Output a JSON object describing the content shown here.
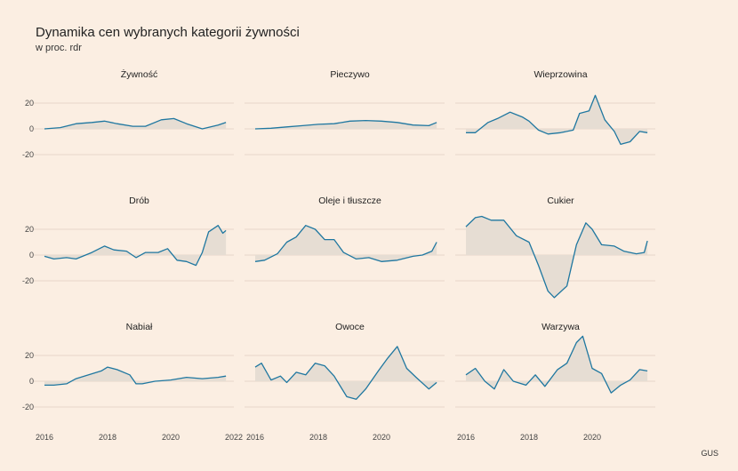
{
  "title": "Dynamika cen wybranych kategorii żywności",
  "subtitle": "w proc. rdr",
  "source": "GUS",
  "colors": {
    "line": "#1f77a0",
    "area": "#e6ddd3",
    "background": "#fbeee2"
  },
  "chart_data": {
    "type": "area",
    "layout": "facet-grid-3x3",
    "xlim": [
      2016,
      2022
    ],
    "ylim": [
      -35,
      35
    ],
    "x_ticks": [
      "2016",
      "2018",
      "2020",
      "2022"
    ],
    "y_ticks": [
      "20",
      "0",
      "-20"
    ],
    "facets": [
      {
        "name": "Żywność",
        "x": [
          2016,
          2016.5,
          2017,
          2017.5,
          2017.9,
          2018.3,
          2018.8,
          2019.2,
          2019.7,
          2020.1,
          2020.5,
          2021,
          2021.5,
          2021.75
        ],
        "y": [
          0,
          1,
          4,
          5,
          6,
          4,
          2,
          2,
          7,
          8,
          4,
          0,
          3,
          5
        ]
      },
      {
        "name": "Pieczywo",
        "x": [
          2016,
          2016.5,
          2017,
          2017.5,
          2018,
          2018.5,
          2019,
          2019.5,
          2020,
          2020.5,
          2021,
          2021.5,
          2021.75
        ],
        "y": [
          0,
          0.5,
          1.5,
          2.5,
          3.5,
          4,
          6,
          6.5,
          6,
          5,
          3,
          2.5,
          5
        ]
      },
      {
        "name": "Wieprzowina",
        "x": [
          2016,
          2016.3,
          2016.7,
          2017,
          2017.4,
          2017.8,
          2018,
          2018.3,
          2018.6,
          2019,
          2019.4,
          2019.6,
          2019.9,
          2020.1,
          2020.4,
          2020.7,
          2020.9,
          2021.2,
          2021.5,
          2021.75
        ],
        "y": [
          -3,
          -3,
          5,
          8,
          13,
          9,
          6,
          -1,
          -4,
          -3,
          -1,
          12,
          14,
          26,
          7,
          -2,
          -12,
          -10,
          -2,
          -3
        ]
      },
      {
        "name": "Drób",
        "x": [
          2016,
          2016.3,
          2016.7,
          2017,
          2017.5,
          2017.9,
          2018.2,
          2018.6,
          2018.9,
          2019.2,
          2019.6,
          2019.9,
          2020.2,
          2020.5,
          2020.8,
          2021,
          2021.2,
          2021.5,
          2021.65,
          2021.75
        ],
        "y": [
          -1,
          -3,
          -2,
          -3,
          2,
          7,
          4,
          3,
          -2,
          2,
          2,
          5,
          -4,
          -5,
          -8,
          2,
          18,
          23,
          17,
          19
        ]
      },
      {
        "name": "Oleje i tłuszcze",
        "x": [
          2016,
          2016.3,
          2016.7,
          2017,
          2017.3,
          2017.6,
          2017.9,
          2018.2,
          2018.5,
          2018.8,
          2019.2,
          2019.6,
          2020,
          2020.5,
          2021,
          2021.3,
          2021.6,
          2021.75
        ],
        "y": [
          -5,
          -4,
          1,
          10,
          14,
          23,
          20,
          12,
          12,
          2,
          -3,
          -2,
          -5,
          -4,
          -1,
          0,
          3,
          10
        ]
      },
      {
        "name": "Cukier",
        "x": [
          2016,
          2016.3,
          2016.5,
          2016.8,
          2017.2,
          2017.6,
          2018,
          2018.3,
          2018.6,
          2018.8,
          2019.2,
          2019.5,
          2019.8,
          2020,
          2020.3,
          2020.7,
          2021,
          2021.4,
          2021.65,
          2021.75
        ],
        "y": [
          22,
          29,
          30,
          27,
          27,
          15,
          10,
          -8,
          -28,
          -33,
          -24,
          8,
          25,
          20,
          8,
          7,
          3,
          1,
          2,
          11
        ]
      },
      {
        "name": "Nabiał",
        "x": [
          2016,
          2016.3,
          2016.7,
          2017,
          2017.4,
          2017.8,
          2018,
          2018.3,
          2018.7,
          2018.9,
          2019.1,
          2019.5,
          2020,
          2020.5,
          2021,
          2021.5,
          2021.75
        ],
        "y": [
          -3,
          -3,
          -2,
          2,
          5,
          8,
          11,
          9,
          5,
          -2,
          -2,
          0,
          1,
          3,
          2,
          3,
          4
        ]
      },
      {
        "name": "Owoce",
        "x": [
          2016,
          2016.2,
          2016.5,
          2016.8,
          2017,
          2017.3,
          2017.6,
          2017.9,
          2018.2,
          2018.5,
          2018.9,
          2019.2,
          2019.5,
          2019.9,
          2020.2,
          2020.5,
          2020.8,
          2021.1,
          2021.5,
          2021.75
        ],
        "y": [
          11,
          14,
          1,
          4,
          -1,
          7,
          5,
          14,
          12,
          4,
          -12,
          -14,
          -6,
          8,
          18,
          27,
          10,
          3,
          -6,
          -1
        ]
      },
      {
        "name": "Warzywa",
        "x": [
          2016,
          2016.3,
          2016.6,
          2016.9,
          2017.2,
          2017.5,
          2017.9,
          2018.2,
          2018.5,
          2018.9,
          2019.2,
          2019.5,
          2019.7,
          2020,
          2020.3,
          2020.6,
          2020.9,
          2021.2,
          2021.5,
          2021.75
        ],
        "y": [
          5,
          10,
          0,
          -6,
          9,
          0,
          -3,
          5,
          -4,
          9,
          14,
          30,
          35,
          10,
          6,
          -9,
          -3,
          1,
          9,
          8
        ]
      }
    ]
  }
}
